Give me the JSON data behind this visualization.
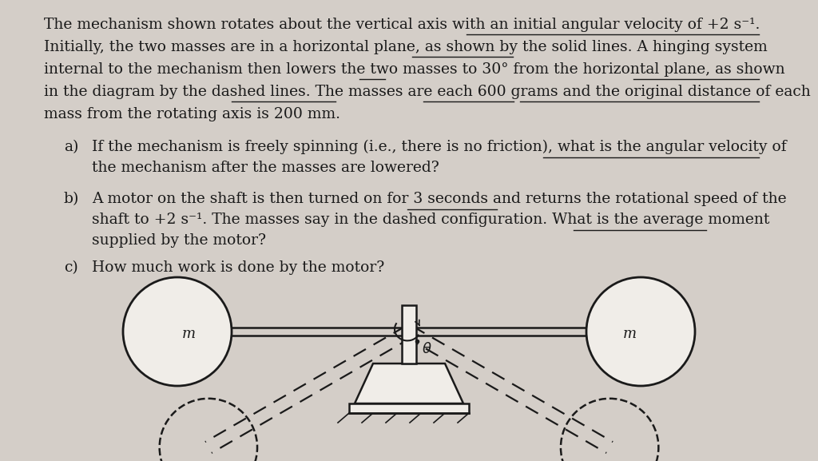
{
  "bg_color": "#d4cec8",
  "text_color": "#1a1a1a",
  "para_text": "The mechanism shown rotates about the vertical axis with an initial angular velocity of +2 s⁻¹.\nInitially, the two masses are in a horizontal plane, as shown by the solid lines. A hinging system\ninternal to the mechanism then lowers the two masses to 30° from the horizontal plane, as shown\nin the diagram by the dashed lines. The masses are each 600 grams and the original distance of each\nmass from the rotating axis is 200 mm.",
  "qa_text": [
    [
      "a)",
      "If the mechanism is freely spinning (i.e., there is no friction), what is the angular velocity of\n     the mechanism after the masses are lowered?"
    ],
    [
      "b)",
      "A motor on the shaft is then turned on for 3 seconds and returns the rotational speed of the\n     shaft to +2 s⁻¹. The masses say in the dashed configuration. What is the average moment\n     supplied by the motor?"
    ],
    [
      "c)",
      "How much work is done by the motor?"
    ]
  ]
}
